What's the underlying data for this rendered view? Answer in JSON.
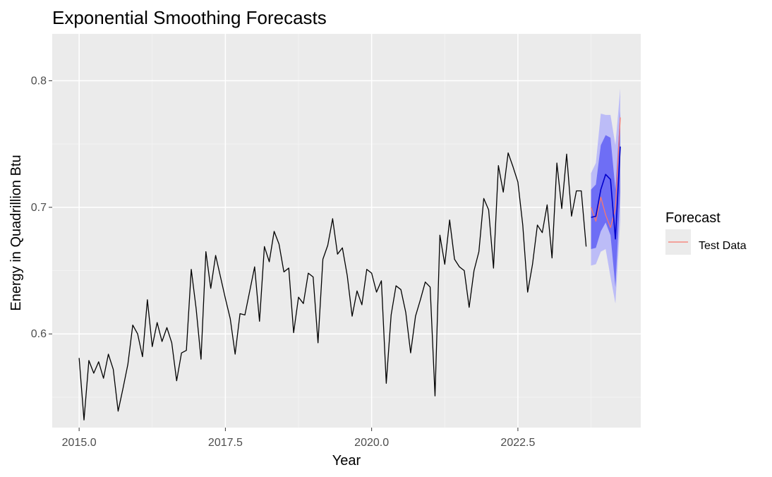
{
  "colors": {
    "panel": "#ebebeb",
    "grid_major": "#ffffff",
    "grid_minor": "#f5f5f5",
    "history_line": "#000000",
    "forecast_line": "#0000cc",
    "band_80": "#6e6ef5",
    "band_95": "#bcbcf7",
    "test_line": "#f8766d",
    "legend_key_bg": "#ebebeb"
  },
  "chart_data": {
    "type": "line",
    "title": "Exponential Smoothing Forecasts",
    "xlabel": "Year",
    "ylabel": "Energy in Quadrillion Btu",
    "xlim": [
      2014.54,
      2024.6
    ],
    "ylim": [
      0.526,
      0.837
    ],
    "x_ticks": [
      2015.0,
      2017.5,
      2020.0,
      2022.5
    ],
    "x_tick_labels": [
      "2015.0",
      "2017.5",
      "2020.0",
      "2022.5"
    ],
    "y_ticks": [
      0.6,
      0.7,
      0.8
    ],
    "y_tick_labels": [
      "0.6",
      "0.7",
      "0.8"
    ],
    "grid": true,
    "legend": {
      "title": "Forecast",
      "position": "right",
      "entries": [
        {
          "label": "Test Data",
          "color": "#f8766d"
        }
      ]
    },
    "series": [
      {
        "start": 2015.0,
        "step": 0.0833333,
        "values": [
          0.581,
          0.532,
          0.579,
          0.569,
          0.578,
          0.565,
          0.584,
          0.572,
          0.539,
          0.557,
          0.576,
          0.607,
          0.6,
          0.582,
          0.627,
          0.59,
          0.609,
          0.594,
          0.605,
          0.593,
          0.563,
          0.585,
          0.587,
          0.651,
          0.62,
          0.58,
          0.665,
          0.636,
          0.662,
          0.645,
          0.628,
          0.612,
          0.584,
          0.616,
          0.615,
          0.634,
          0.653,
          0.61,
          0.669,
          0.657,
          0.681,
          0.671,
          0.649,
          0.652,
          0.601,
          0.629,
          0.624,
          0.648,
          0.645,
          0.593,
          0.659,
          0.67,
          0.691,
          0.663,
          0.668,
          0.646,
          0.614,
          0.634,
          0.623,
          0.651,
          0.648,
          0.633,
          0.642,
          0.561,
          0.615,
          0.638,
          0.635,
          0.617,
          0.585,
          0.614,
          0.627,
          0.641,
          0.637,
          0.551,
          0.678,
          0.655,
          0.69,
          0.659,
          0.653,
          0.65,
          0.621,
          0.65,
          0.665,
          0.707,
          0.698,
          0.652,
          0.733,
          0.712,
          0.743,
          0.732,
          0.72,
          0.686,
          0.633,
          0.655,
          0.686,
          0.68,
          0.702,
          0.66,
          0.735,
          0.699,
          0.742,
          0.693,
          0.713,
          0.713,
          0.669
        ]
      },
      {
        "name": "Test Data",
        "x": [
          2023.75,
          2023.833,
          2023.917,
          2024.0,
          2024.083,
          2024.167,
          2024.25
        ],
        "values": [
          0.7,
          0.689,
          0.708,
          0.694,
          0.684,
          0.699,
          0.771
        ]
      },
      {
        "x": [
          2023.75,
          2023.833,
          2023.917,
          2024.0,
          2024.083,
          2024.167,
          2024.25
        ],
        "values": [
          0.692,
          0.693,
          0.714,
          0.726,
          0.722,
          0.675,
          0.748
        ],
        "lo80": [
          0.667,
          0.668,
          0.681,
          0.688,
          0.678,
          0.637,
          0.712
        ],
        "hi80": [
          0.714,
          0.718,
          0.749,
          0.757,
          0.755,
          0.714,
          0.776
        ],
        "lo95": [
          0.654,
          0.655,
          0.665,
          0.667,
          0.645,
          0.624,
          0.69
        ],
        "hi95": [
          0.727,
          0.735,
          0.774,
          0.773,
          0.773,
          0.749,
          0.794
        ]
      }
    ]
  }
}
